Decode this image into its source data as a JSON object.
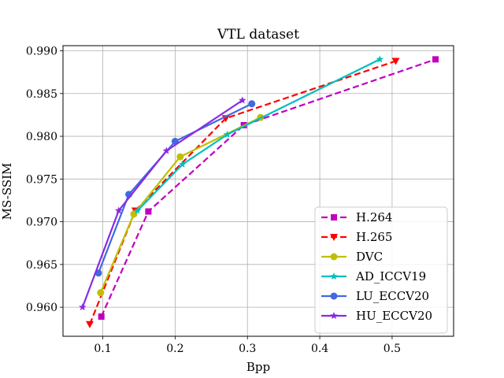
{
  "chart_data": {
    "type": "line",
    "title": "VTL dataset",
    "xlabel": "Bpp",
    "ylabel": "MS-SSIM",
    "xlim": [
      0.045,
      0.585
    ],
    "ylim": [
      0.9566,
      0.9906
    ],
    "xticks": [
      0.1,
      0.2,
      0.3,
      0.4,
      0.5
    ],
    "yticks": [
      0.96,
      0.965,
      0.97,
      0.975,
      0.98,
      0.985,
      0.99
    ],
    "grid": true,
    "legend_position": "lower-right",
    "series": [
      {
        "name": "H.264",
        "color": "#bf00bf",
        "marker": "square",
        "dash": "dashed",
        "points": [
          [
            0.098,
            0.9589
          ],
          [
            0.163,
            0.9712
          ],
          [
            0.295,
            0.9813
          ],
          [
            0.56,
            0.989
          ]
        ]
      },
      {
        "name": "H.265",
        "color": "#ff0000",
        "marker": "triangle-down",
        "dash": "dashed",
        "points": [
          [
            0.082,
            0.958
          ],
          [
            0.145,
            0.9713
          ],
          [
            0.27,
            0.9821
          ],
          [
            0.505,
            0.9888
          ]
        ]
      },
      {
        "name": "DVC",
        "color": "#bfbf00",
        "marker": "circle",
        "dash": "solid",
        "points": [
          [
            0.097,
            0.9617
          ],
          [
            0.143,
            0.9709
          ],
          [
            0.207,
            0.9776
          ],
          [
            0.318,
            0.9822
          ]
        ]
      },
      {
        "name": "AD_ICCV19",
        "color": "#00bfbf",
        "marker": "star",
        "dash": "solid",
        "points": [
          [
            0.148,
            0.9713
          ],
          [
            0.21,
            0.9767
          ],
          [
            0.272,
            0.9802
          ],
          [
            0.483,
            0.989
          ]
        ]
      },
      {
        "name": "LU_ECCV20",
        "color": "#4169e1",
        "marker": "circle",
        "dash": "solid",
        "points": [
          [
            0.094,
            0.964
          ],
          [
            0.136,
            0.9732
          ],
          [
            0.2,
            0.9794
          ],
          [
            0.306,
            0.9838
          ]
        ]
      },
      {
        "name": "HU_ECCV20",
        "color": "#8a2be2",
        "marker": "star",
        "dash": "solid",
        "points": [
          [
            0.072,
            0.96
          ],
          [
            0.122,
            0.9713
          ],
          [
            0.188,
            0.9783
          ],
          [
            0.293,
            0.9842
          ]
        ]
      }
    ]
  }
}
